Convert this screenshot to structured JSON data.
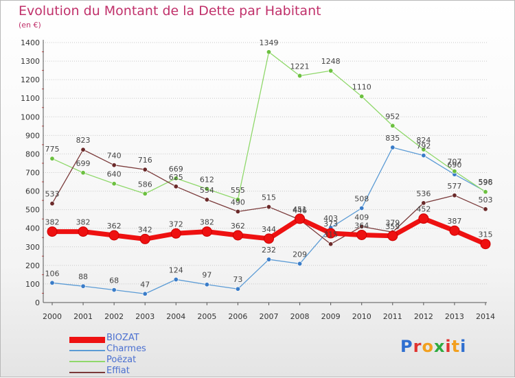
{
  "title": "Evolution du Montant de la Dette par Habitant",
  "subtitle": "(en €)",
  "logo": {
    "text": "Proxiti",
    "colors": [
      "#2f6fd0",
      "#e0332f",
      "#f2a01f",
      "#2faa3f",
      "#e0332f",
      "#f2a01f",
      "#2f6fd0"
    ]
  },
  "chart_data": {
    "type": "line",
    "title": "Evolution du Montant de la Dette par Habitant",
    "ylabel": "(en €)",
    "xlabel": "",
    "x": [
      "2000",
      "2001",
      "2002",
      "2003",
      "2004",
      "2005",
      "2006",
      "2007",
      "2008",
      "2009",
      "2010",
      "2011",
      "2012",
      "2013",
      "2014"
    ],
    "ylim": [
      0,
      1400
    ],
    "yticks": [
      "0",
      "100",
      "200",
      "300",
      "400",
      "500",
      "600",
      "700",
      "800",
      "900",
      "1000",
      "1100",
      "1200",
      "1300",
      "1400"
    ],
    "grid": "horizontal, dotted",
    "legend_position": "bottom-left",
    "series": [
      {
        "name": "Charmes",
        "color": "#5b9bd5",
        "point_color": "#3a7cc8",
        "values": [
          106,
          88,
          68,
          47,
          124,
          97,
          73,
          232,
          209,
          403,
          508,
          835,
          792,
          690,
          598
        ]
      },
      {
        "name": "Poëzat",
        "color": "#8fd86a",
        "point_color": "#6cc040",
        "values": [
          775,
          699,
          640,
          586,
          669,
          612,
          555,
          1349,
          1221,
          1248,
          1110,
          952,
          824,
          707,
          596
        ]
      },
      {
        "name": "Effiat",
        "color": "#7a3a3a",
        "point_color": "#6b2a2a",
        "values": [
          533,
          823,
          740,
          716,
          625,
          554,
          490,
          515,
          446,
          315,
          409,
          379,
          536,
          577,
          503
        ]
      },
      {
        "name": "BIOZAT",
        "color": "#ee1111",
        "point_color": "#ee1111",
        "values": [
          382,
          382,
          362,
          342,
          372,
          382,
          362,
          344,
          451,
          373,
          364,
          359,
          452,
          387,
          315
        ]
      }
    ]
  }
}
